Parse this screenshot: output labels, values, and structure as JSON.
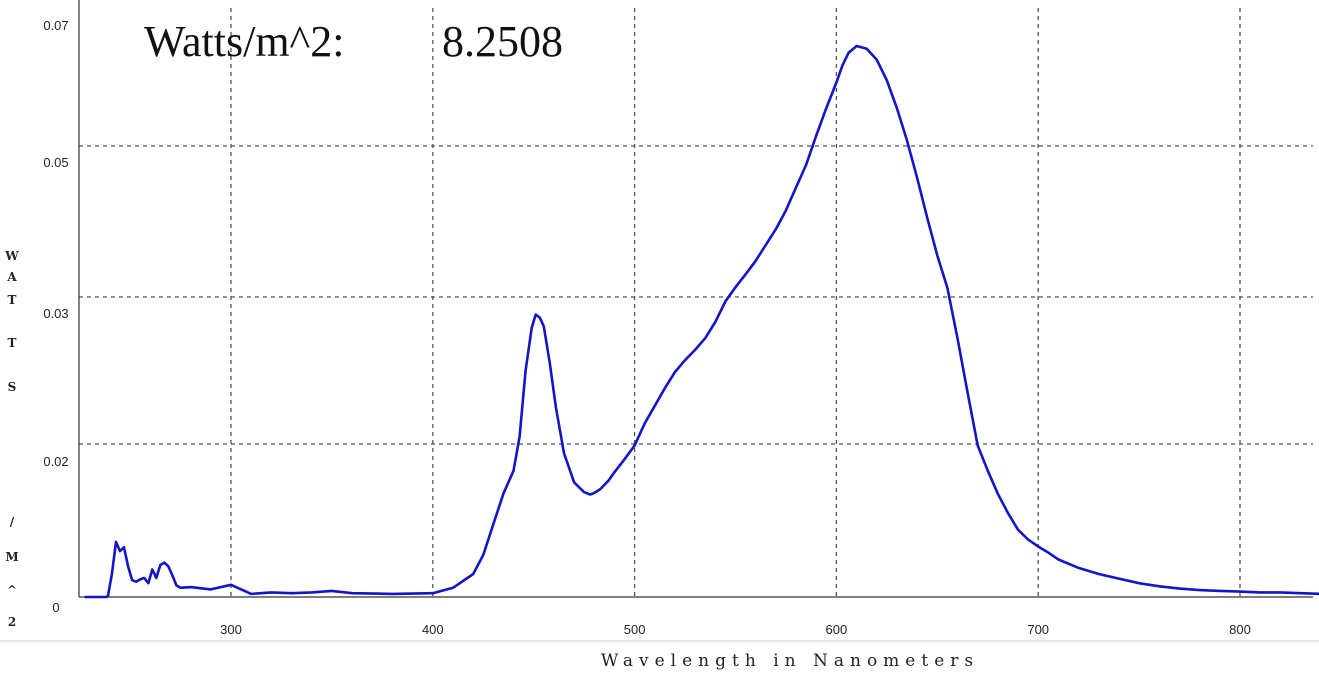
{
  "header": {
    "label": "Watts/m^2:",
    "value": "8.2508"
  },
  "chart_data": {
    "type": "line",
    "xlabel": "Wavelength in Nanometers",
    "ylabel": "WATTS/M^2",
    "ylabel_chars": [
      "W",
      "A",
      "T",
      "T",
      "S",
      "/",
      "M",
      "^",
      "2"
    ],
    "x_ticks": [
      300,
      400,
      500,
      600,
      700,
      800
    ],
    "y_ticks": [
      0,
      0.02,
      0.03,
      0.05,
      0.07
    ],
    "grid": true,
    "series": [
      {
        "color": "#1414c8",
        "x": [
          228,
          238,
          239,
          241,
          243,
          245,
          247,
          249,
          251,
          253,
          255,
          257,
          259,
          261,
          263,
          265,
          267,
          269,
          271,
          273,
          275,
          280,
          290,
          300,
          310,
          320,
          330,
          340,
          350,
          360,
          380,
          400,
          410,
          420,
          425,
          430,
          435,
          440,
          443,
          446,
          449,
          451,
          453,
          455,
          458,
          461,
          465,
          470,
          475,
          478,
          480,
          483,
          487,
          490,
          495,
          500,
          505,
          510,
          515,
          520,
          525,
          530,
          535,
          540,
          545,
          550,
          555,
          560,
          565,
          570,
          575,
          580,
          585,
          590,
          595,
          600,
          603,
          606,
          610,
          615,
          620,
          625,
          630,
          635,
          640,
          645,
          650,
          655,
          660,
          665,
          670,
          675,
          680,
          685,
          690,
          695,
          700,
          705,
          710,
          720,
          730,
          740,
          750,
          760,
          770,
          780,
          790,
          800,
          810,
          820,
          830,
          840
        ],
        "y": [
          0,
          0,
          0.0001,
          0.003,
          0.0072,
          0.006,
          0.0065,
          0.004,
          0.0022,
          0.002,
          0.0023,
          0.0025,
          0.0018,
          0.0036,
          0.0025,
          0.0042,
          0.0045,
          0.004,
          0.0028,
          0.0015,
          0.0012,
          0.0013,
          0.001,
          0.0016,
          0.0004,
          0.0006,
          0.0005,
          0.0006,
          0.0008,
          0.0005,
          0.0004,
          0.0005,
          0.0012,
          0.003,
          0.0055,
          0.0095,
          0.0135,
          0.0165,
          0.0205,
          0.025,
          0.0279,
          0.0288,
          0.0286,
          0.028,
          0.0255,
          0.0225,
          0.0188,
          0.015,
          0.0137,
          0.0134,
          0.0136,
          0.0141,
          0.0152,
          0.0163,
          0.018,
          0.0198,
          0.0214,
          0.0226,
          0.0238,
          0.0249,
          0.0257,
          0.0264,
          0.0272,
          0.0283,
          0.0297,
          0.0313,
          0.033,
          0.0348,
          0.0369,
          0.039,
          0.0415,
          0.0445,
          0.0475,
          0.0515,
          0.0555,
          0.0592,
          0.0617,
          0.0635,
          0.0645,
          0.0641,
          0.0625,
          0.0595,
          0.0555,
          0.0508,
          0.0458,
          0.0405,
          0.0355,
          0.0312,
          0.0272,
          0.0235,
          0.0198,
          0.0165,
          0.0135,
          0.011,
          0.0088,
          0.0075,
          0.0066,
          0.0058,
          0.0049,
          0.0038,
          0.003,
          0.0024,
          0.0018,
          0.0014,
          0.0011,
          0.0009,
          0.0008,
          0.0007,
          0.0006,
          0.0006,
          0.0005,
          0.0004
        ]
      }
    ]
  }
}
